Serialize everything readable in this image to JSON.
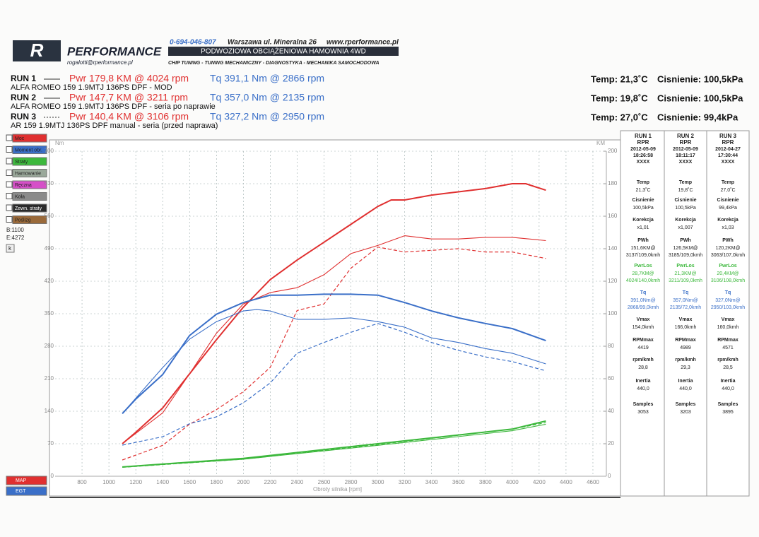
{
  "header": {
    "logo_letter": "R",
    "logo": "PERFORMANCE",
    "email": "rogalotti@rperformance.pl",
    "phone": "0-694-046-807",
    "address": "Warszawa ul. Mineralna 26",
    "web": "www.rperformance.pl",
    "banner": "PODWOZIOWA OBCIĄŻENIOWA HAMOWNIA 4WD",
    "tagline": "CHIP TUNING - TUNING MECHANICZNY - DIAGNOSTYKA - MECHANIKA SAMOCHODOWA"
  },
  "runs": [
    {
      "run": "RUN 1",
      "pwr": "Pwr 179,8 KM @ 4024 rpm",
      "tq": "Tq 391,1 Nm @ 2866 rpm",
      "car": "ALFA ROMEO 159 1.9MTJ 136PS DPF - MOD",
      "temp": "Temp: 21,3˚C",
      "press": "Cisnienie: 100,5kPa",
      "dash": "solid"
    },
    {
      "run": "RUN 2",
      "pwr": "Pwr 147,7 KM @ 3211 rpm",
      "tq": "Tq 357,0 Nm @ 2135 rpm",
      "car": "ALFA ROMEO 159 1.9MTJ 136PS DPF - seria po naprawie",
      "temp": "Temp: 19,8˚C",
      "press": "Cisnienie: 100,5kPa",
      "dash": "thin"
    },
    {
      "run": "RUN 3",
      "pwr": "Pwr 140,4 KM @ 3106 rpm",
      "tq": "Tq 327,2 Nm @ 2950 rpm",
      "car": "AR 159 1.9MTJ 136PS DPF manual - seria (przed naprawa)",
      "temp": "Temp: 27,0˚C",
      "press": "Cisnienie: 99,4kPa",
      "dash": "dashed"
    }
  ],
  "legend_panel": {
    "items": [
      {
        "label": "Moc",
        "color": "#e03030"
      },
      {
        "label": "Moment obr.",
        "color": "#3a6fc8"
      },
      {
        "label": "Straty",
        "color": "#3cb83c"
      },
      {
        "label": "Hamowanie",
        "color": "#9aa89a"
      },
      {
        "label": "Ręczna",
        "color": "#d64fc8"
      },
      {
        "label": "Koła",
        "color": "#8a8a8a"
      },
      {
        "label": "Zewn. straty",
        "color": "#2a2a2a"
      },
      {
        "label": "Poślizg",
        "color": "#9a6a3a"
      }
    ],
    "begin": "B:1100",
    "end": "E:4272",
    "k": "k",
    "bottom": [
      {
        "label": "MAP",
        "color": "#e03030"
      },
      {
        "label": "EGT",
        "color": "#3a6fc8"
      }
    ]
  },
  "chart_data": {
    "type": "line",
    "y_label": "Nm",
    "y2_label": "KM",
    "x_label": "Obroty silnika [rpm]",
    "grid": true,
    "xlim": [
      600,
      4700
    ],
    "xticks": [
      800,
      1000,
      1200,
      1400,
      1600,
      1800,
      2000,
      2200,
      2400,
      2600,
      2800,
      3000,
      3200,
      3400,
      3600,
      3800,
      4000,
      4200,
      4400,
      4600
    ],
    "ylim": [
      0,
      700
    ],
    "yticks": [
      0,
      70,
      140,
      210,
      280,
      350,
      420,
      490,
      560,
      630,
      700
    ],
    "y2lim": [
      0,
      200
    ],
    "y2ticks": [
      0,
      20,
      40,
      60,
      80,
      100,
      120,
      140,
      160,
      180,
      200
    ],
    "series": [
      {
        "color": "#e03030",
        "dash": "solid",
        "axis": "y2",
        "x": [
          1100,
          1200,
          1400,
          1600,
          1800,
          2000,
          2200,
          2400,
          2600,
          2800,
          3000,
          3100,
          3200,
          3400,
          3600,
          3800,
          4000,
          4100,
          4250
        ],
        "values": [
          20,
          27,
          42,
          63,
          84,
          104,
          121,
          133,
          144,
          155,
          166,
          170,
          170,
          173,
          175,
          177,
          180,
          180,
          176
        ]
      },
      {
        "color": "#e03030",
        "dash": "thin",
        "axis": "y2",
        "x": [
          1100,
          1400,
          1600,
          1800,
          2000,
          2200,
          2400,
          2600,
          2800,
          3000,
          3200,
          3400,
          3600,
          3800,
          4000,
          4250
        ],
        "values": [
          20,
          39,
          63,
          88,
          106,
          113,
          116,
          124,
          137,
          142,
          148,
          146,
          146,
          147,
          147,
          145
        ]
      },
      {
        "color": "#e03030",
        "dash": "dashed",
        "axis": "y2",
        "x": [
          1100,
          1400,
          1600,
          1800,
          2000,
          2200,
          2400,
          2600,
          2800,
          3000,
          3200,
          3400,
          3600,
          3800,
          4000,
          4250
        ],
        "values": [
          10,
          19,
          32,
          41,
          52,
          67,
          102,
          106,
          128,
          141,
          138,
          139,
          140,
          138,
          138,
          134
        ]
      },
      {
        "color": "#3a6fc8",
        "dash": "solid",
        "x": [
          1100,
          1200,
          1400,
          1600,
          1800,
          2000,
          2200,
          2400,
          2600,
          2800,
          3000,
          3200,
          3400,
          3600,
          3800,
          4000,
          4250
        ],
        "values": [
          135,
          166,
          219,
          303,
          349,
          374,
          390,
          390,
          392,
          392,
          390,
          374,
          356,
          341,
          329,
          318,
          292
        ]
      },
      {
        "color": "#3a6fc8",
        "dash": "thin",
        "x": [
          1100,
          1400,
          1600,
          1800,
          2000,
          2100,
          2200,
          2400,
          2600,
          2800,
          3000,
          3200,
          3400,
          3600,
          3800,
          4000,
          4250
        ],
        "values": [
          135,
          234,
          295,
          333,
          356,
          359,
          356,
          338,
          338,
          341,
          333,
          321,
          298,
          288,
          275,
          265,
          242
        ]
      },
      {
        "color": "#3a6fc8",
        "dash": "dashed",
        "x": [
          1100,
          1400,
          1600,
          1800,
          2000,
          2200,
          2400,
          2600,
          2800,
          3000,
          3200,
          3400,
          3600,
          3800,
          4000,
          4250
        ],
        "values": [
          67,
          85,
          113,
          128,
          158,
          201,
          265,
          288,
          310,
          329,
          310,
          288,
          271,
          257,
          247,
          227
        ]
      },
      {
        "color": "#3cb83c",
        "dash": "solid",
        "axis": "y2",
        "x": [
          1100,
          2000,
          3000,
          4000,
          4250
        ],
        "values": [
          5.7,
          11,
          20,
          29,
          34
        ]
      },
      {
        "color": "#3cb83c",
        "dash": "thin",
        "axis": "y2",
        "x": [
          1100,
          2000,
          3000,
          4000,
          4250
        ],
        "values": [
          5.7,
          10.5,
          19,
          28,
          32
        ]
      },
      {
        "color": "#3cb83c",
        "dash": "dashed",
        "axis": "y2",
        "x": [
          1100,
          2000,
          3000,
          4000,
          4250
        ],
        "values": [
          5.5,
          10.5,
          19.5,
          29,
          33
        ]
      }
    ]
  },
  "table": {
    "columns": [
      {
        "run": "RUN 1",
        "rpr": "RPR",
        "date": "2012-05-09",
        "time": "18:26:58",
        "id": "XXXX"
      },
      {
        "run": "RUN 2",
        "rpr": "RPR",
        "date": "2012-05-09",
        "time": "18:11:17",
        "id": "XXXX"
      },
      {
        "run": "RUN 3",
        "rpr": "RPR",
        "date": "2012-04-27",
        "time": "17:30:44",
        "id": "XXXX"
      }
    ],
    "rows": [
      {
        "label": "Temp",
        "values": [
          [
            "21,3˚C"
          ],
          [
            "19,8˚C"
          ],
          [
            "27,0˚C"
          ]
        ]
      },
      {
        "label": "Cisnienie",
        "values": [
          [
            "100,5kPa"
          ],
          [
            "100,5kPa"
          ],
          [
            "99,4kPa"
          ]
        ]
      },
      {
        "label": "Korekcja",
        "values": [
          [
            "x1,01"
          ],
          [
            "x1,007"
          ],
          [
            "x1,03"
          ]
        ]
      },
      {
        "label": "PWh",
        "values": [
          [
            "151,6KM@",
            "3137/109,0kmh"
          ],
          [
            "126,5KM@",
            "3185/109,0kmh"
          ],
          [
            "120,2KM@",
            "3063/107,0kmh"
          ]
        ]
      },
      {
        "label": "PwrLos",
        "color": "#3cb83c",
        "values": [
          [
            "28,7KM@",
            "4024/140,0kmh"
          ],
          [
            "21,3KM@",
            "3211/109,0kmh"
          ],
          [
            "20,4KM@",
            "3106/108,0kmh"
          ]
        ]
      },
      {
        "label": "Tq",
        "color": "#3a6fc8",
        "values": [
          [
            "391,0Nm@",
            "2868/99,0kmh"
          ],
          [
            "357,0Nm@",
            "2135/72,0kmh"
          ],
          [
            "327,0Nm@",
            "2950/103,0kmh"
          ]
        ]
      },
      {
        "label": "Vmax",
        "values": [
          [
            "154,0kmh"
          ],
          [
            "166,0kmh"
          ],
          [
            "160,0kmh"
          ]
        ]
      },
      {
        "label": "RPMmax",
        "values": [
          [
            "4419"
          ],
          [
            "4989"
          ],
          [
            "4571"
          ]
        ]
      },
      {
        "label": "rpm/kmh",
        "values": [
          [
            "28,8"
          ],
          [
            "29,3"
          ],
          [
            "28,5"
          ]
        ]
      },
      {
        "label": "Inertia",
        "values": [
          [
            "440,0"
          ],
          [
            "440,0"
          ],
          [
            "440,0"
          ]
        ]
      },
      {
        "label": "Samples",
        "values": [
          [
            "3053"
          ],
          [
            "3203"
          ],
          [
            "3895"
          ]
        ]
      }
    ]
  }
}
